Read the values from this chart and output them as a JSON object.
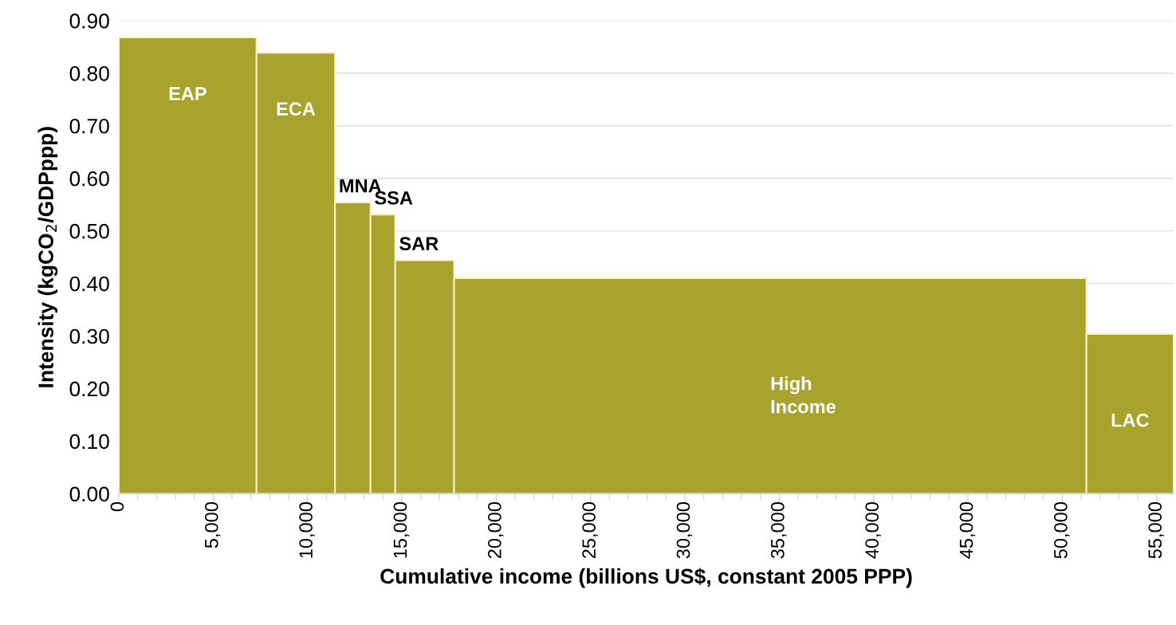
{
  "chart_data": {
    "type": "histogram",
    "xlabel": "Cumulative income (billions US$, constant 2005 PPP)",
    "ylabel": "Intensity (kgCO$_{2}$/GDPppp)",
    "bins": [
      0,
      7300,
      11460,
      13340,
      14650,
      17770,
      51280,
      55900
    ],
    "values": [
      0.868,
      0.839,
      0.554,
      0.531,
      0.444,
      0.41,
      0.304
    ],
    "color": "#a8a32c",
    "xlim": [
      0,
      55900
    ],
    "ylim": [
      0,
      0.9
    ],
    "xticks": [
      0,
      {
        "value": 1000,
        "label": null
      },
      {
        "value": 2000,
        "label": null
      },
      {
        "value": 3000,
        "label": null
      },
      {
        "value": 4000,
        "label": null
      },
      {
        "value": 5000,
        "label": "5,000"
      },
      {
        "value": 6000,
        "label": null
      },
      {
        "value": 7000,
        "label": null
      },
      {
        "value": 8000,
        "label": null
      },
      {
        "value": 9000,
        "label": null
      },
      {
        "value": 10000,
        "label": "10,000"
      },
      {
        "value": 11000,
        "label": null
      },
      {
        "value": 12000,
        "label": null
      },
      {
        "value": 13000,
        "label": null
      },
      {
        "value": 14000,
        "label": null
      },
      {
        "value": 15000,
        "label": "15,000"
      },
      {
        "value": 16000,
        "label": null
      },
      {
        "value": 17000,
        "label": null
      },
      {
        "value": 18000,
        "label": null
      },
      {
        "value": 19000,
        "label": null
      },
      {
        "value": 20000,
        "label": "20,000"
      },
      {
        "value": 21000,
        "label": null
      },
      {
        "value": 22000,
        "label": null
      },
      {
        "value": 23000,
        "label": null
      },
      {
        "value": 24000,
        "label": null
      },
      {
        "value": 25000,
        "label": "25,000"
      },
      {
        "value": 26000,
        "label": null
      },
      {
        "value": 27000,
        "label": null
      },
      {
        "value": 28000,
        "label": null
      },
      {
        "value": 29000,
        "label": null
      },
      {
        "value": 30000,
        "label": "30,000"
      },
      {
        "value": 31000,
        "label": null
      },
      {
        "value": 32000,
        "label": null
      },
      {
        "value": 33000,
        "label": null
      },
      {
        "value": 34000,
        "label": null
      },
      {
        "value": 35000,
        "label": "35,000"
      },
      {
        "value": 36000,
        "label": null
      },
      {
        "value": 37000,
        "label": null
      },
      {
        "value": 38000,
        "label": null
      },
      {
        "value": 39000,
        "label": null
      },
      {
        "value": 40000,
        "label": "40,000"
      },
      {
        "value": 41000,
        "label": null
      },
      {
        "value": 42000,
        "label": null
      },
      {
        "value": 43000,
        "label": null
      },
      {
        "value": 44000,
        "label": null
      },
      {
        "value": 45000,
        "label": "45,000"
      },
      {
        "value": 46000,
        "label": null
      },
      {
        "value": 47000,
        "label": null
      },
      {
        "value": 48000,
        "label": null
      },
      {
        "value": 49000,
        "label": null
      },
      {
        "value": 50000,
        "label": "50,000"
      },
      {
        "value": 51000,
        "label": null
      },
      {
        "value": 52000,
        "label": null
      },
      {
        "value": 53000,
        "label": null
      },
      {
        "value": 54000,
        "label": null
      },
      {
        "value": 55000,
        "label": "55,000"
      }
    ],
    "yticks": [
      {
        "value": 0,
        "label": "0.00"
      },
      {
        "value": 0.1,
        "label": "0.10"
      },
      {
        "value": 0.2,
        "label": "0.20"
      },
      {
        "value": 0.3,
        "label": "0.30"
      },
      {
        "value": 0.4,
        "label": "0.40"
      },
      {
        "value": 0.5,
        "label": "0.50"
      },
      {
        "value": 0.6,
        "label": "0.60"
      },
      {
        "value": 0.7,
        "label": "0.70"
      },
      {
        "value": 0.8,
        "label": "0.80"
      },
      {
        "value": 0.9,
        "label": "0.90"
      }
    ],
    "grid": "y",
    "annotations": [
      "EAP",
      "ECA",
      "MNA",
      "SSA",
      "SAR",
      "High\nIncome",
      "LAC"
    ]
  }
}
